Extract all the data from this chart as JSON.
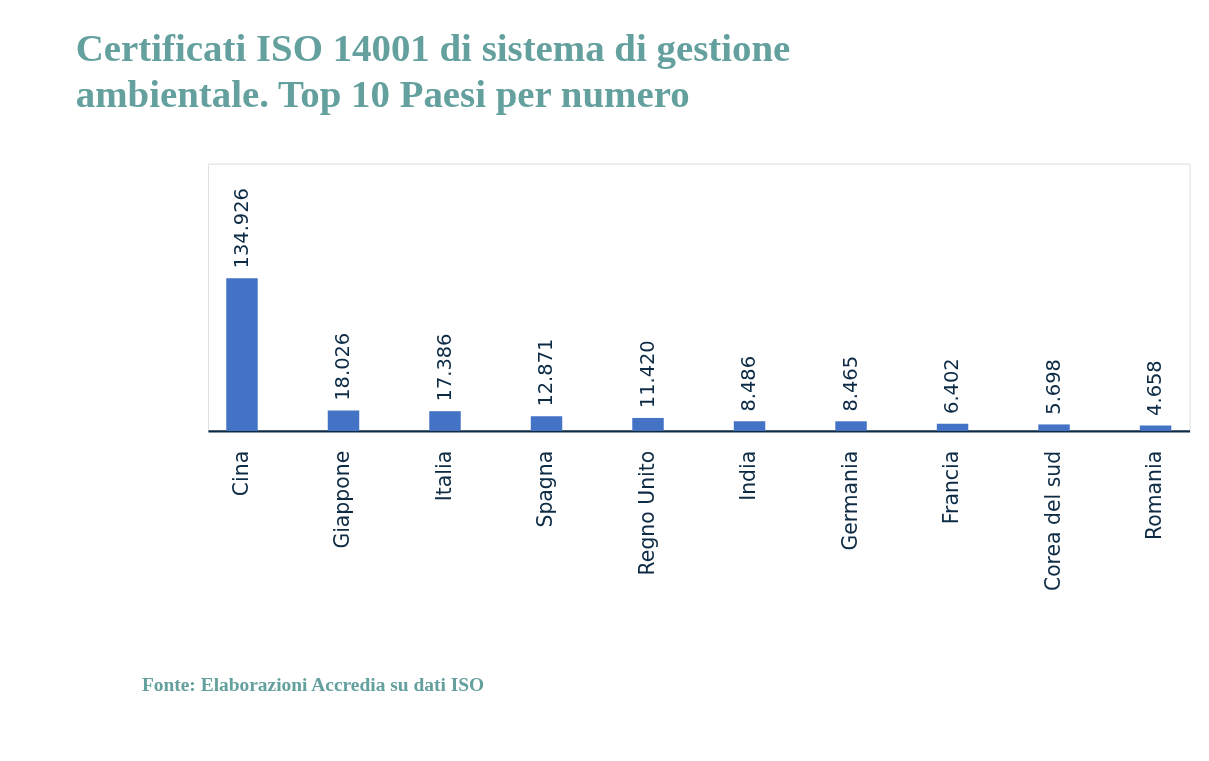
{
  "chart_data": {
    "type": "bar",
    "title": "Certificati ISO 14001 di sistema di gestione ambientale. Top 10 Paesi per numero",
    "categories": [
      "Cina",
      "Giappone",
      "Italia",
      "Spagna",
      "Regno Unito",
      "India",
      "Germania",
      "Francia",
      "Corea del sud",
      "Romania"
    ],
    "values": [
      134926,
      18026,
      17386,
      12871,
      11420,
      8486,
      8465,
      6402,
      5698,
      4658
    ],
    "value_labels": [
      "134.926",
      "18.026",
      "17.386",
      "12.871",
      "11.420",
      "8.486",
      "8.465",
      "6.402",
      "5.698",
      "4.658"
    ],
    "color": "#4472c4",
    "annotations": [
      "Fonte: Elaborazioni Accredia su dati ISO"
    ]
  }
}
